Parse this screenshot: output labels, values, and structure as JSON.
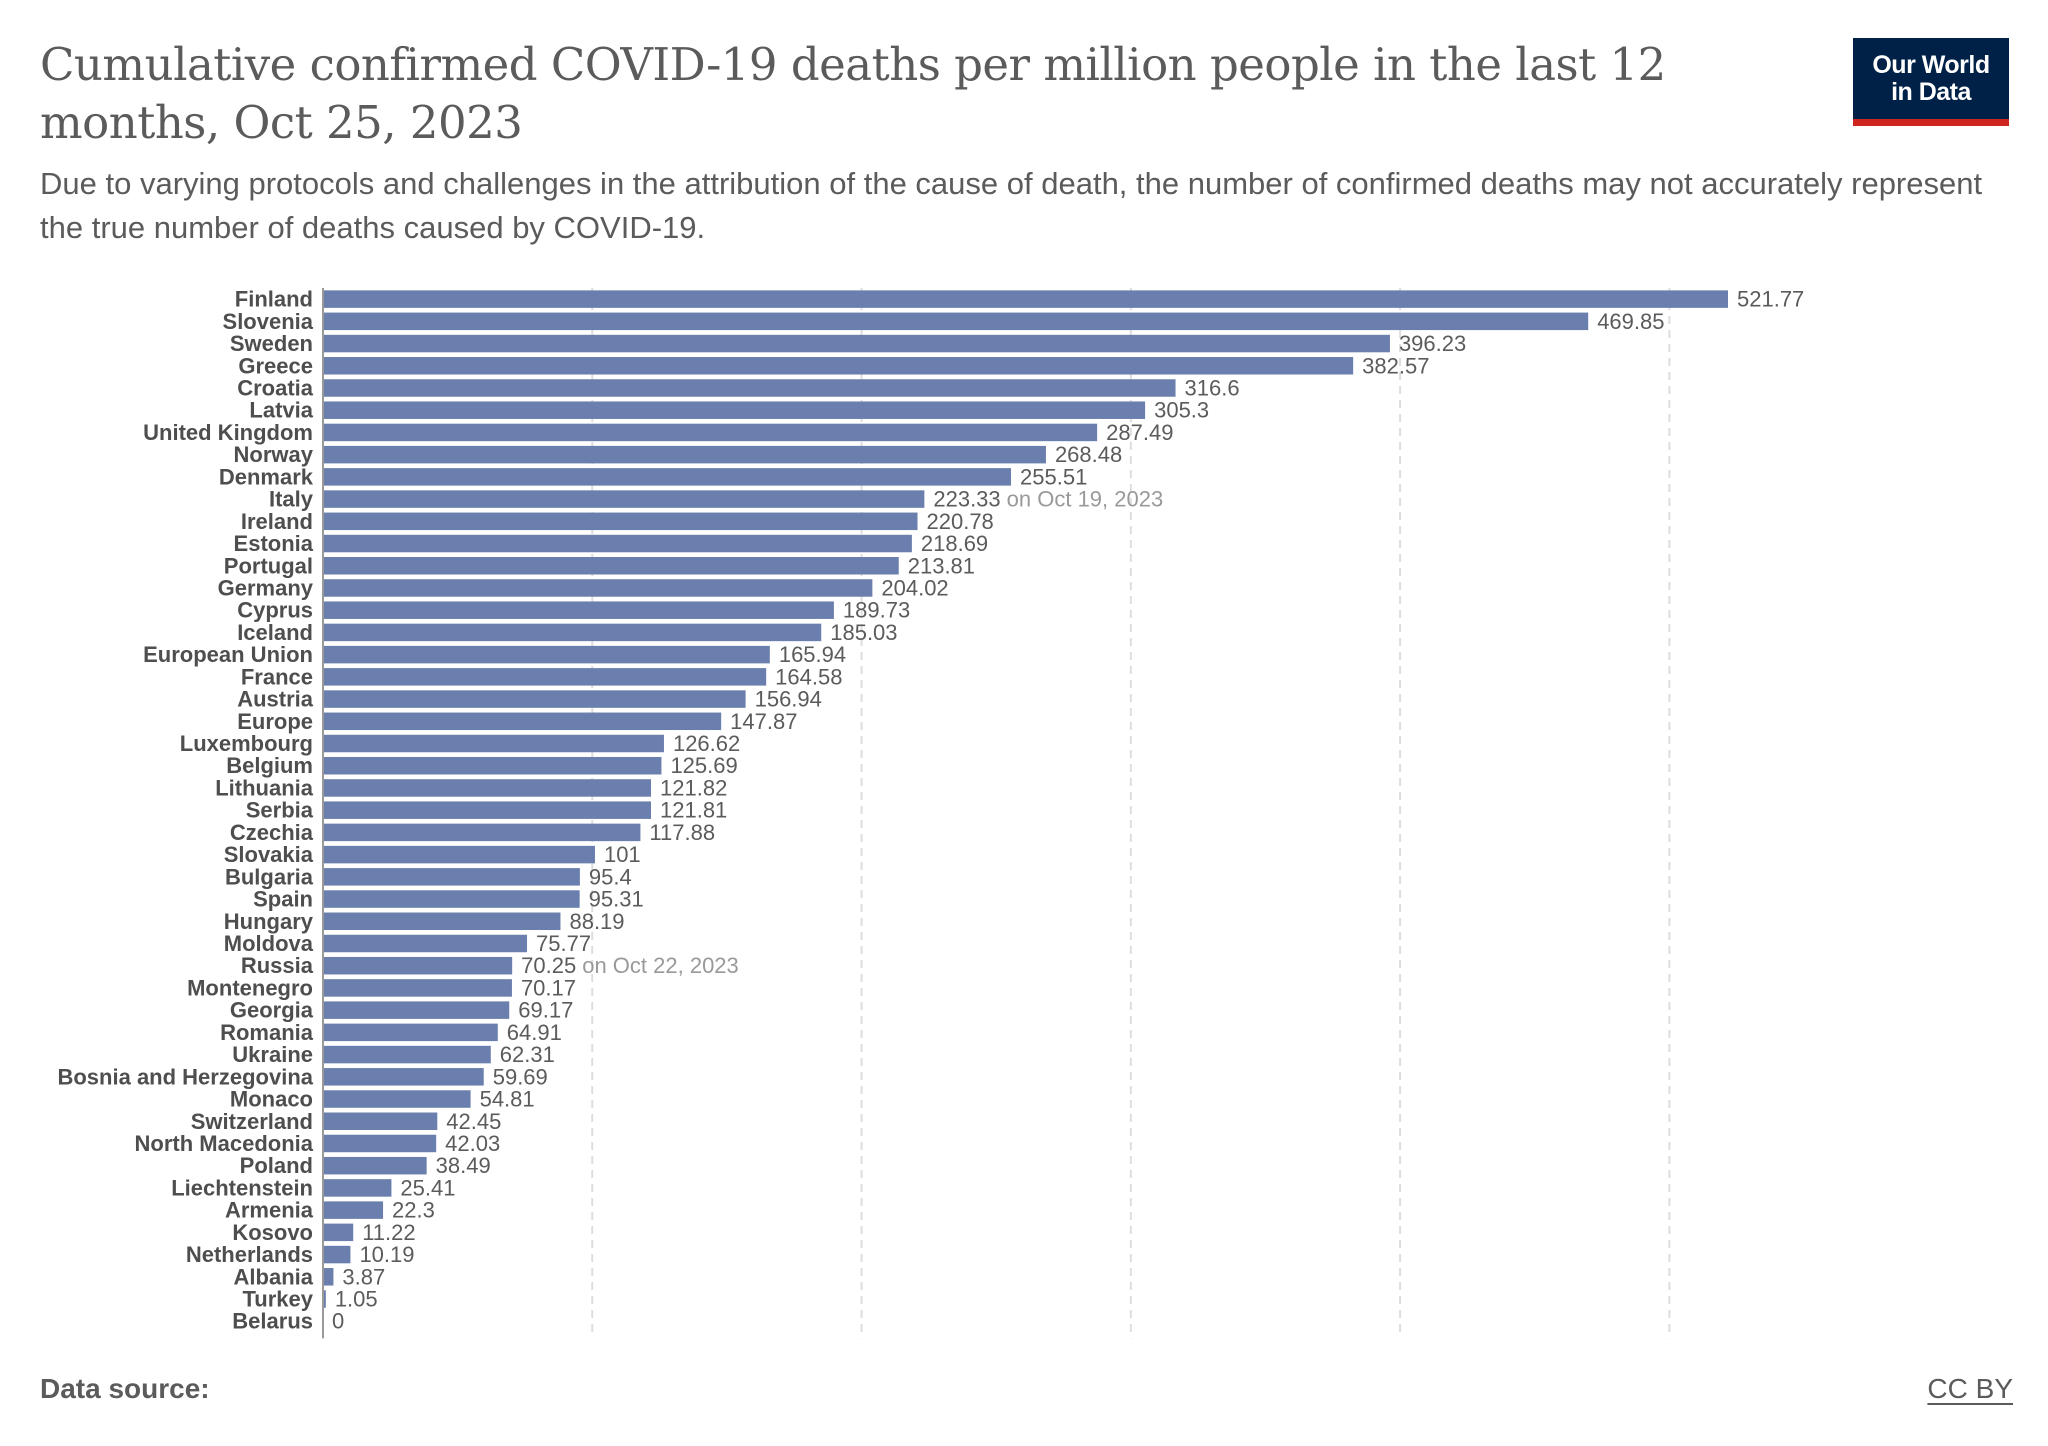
{
  "header": {
    "title": "Cumulative confirmed COVID-19 deaths per million people in the last 12 months, Oct 25, 2023",
    "subtitle": "Due to varying protocols and challenges in the attribution of the cause of death, the number of confirmed deaths may not accurately represent the true number of deaths caused by COVID-19.",
    "logo_line1": "Our World",
    "logo_line2": "in Data"
  },
  "footer": {
    "source_label": "Data source:",
    "license": "CC BY"
  },
  "colors": {
    "bar": "#6a7fad",
    "logo_bg": "#002147",
    "logo_accent": "#ce261e",
    "grid": "#dddddd"
  },
  "chart_data": {
    "type": "bar",
    "orientation": "horizontal",
    "title": "Cumulative confirmed COVID-19 deaths per million people in the last 12 months, Oct 25, 2023",
    "xlabel": "",
    "ylabel": "",
    "xlim": [
      0,
      521.77
    ],
    "gridlines": [
      100,
      200,
      300,
      400,
      500
    ],
    "grid": true,
    "legend": "none",
    "categories": [
      "Finland",
      "Slovenia",
      "Sweden",
      "Greece",
      "Croatia",
      "Latvia",
      "United Kingdom",
      "Norway",
      "Denmark",
      "Italy",
      "Ireland",
      "Estonia",
      "Portugal",
      "Germany",
      "Cyprus",
      "Iceland",
      "European Union",
      "France",
      "Austria",
      "Europe",
      "Luxembourg",
      "Belgium",
      "Lithuania",
      "Serbia",
      "Czechia",
      "Slovakia",
      "Bulgaria",
      "Spain",
      "Hungary",
      "Moldova",
      "Russia",
      "Montenegro",
      "Georgia",
      "Romania",
      "Ukraine",
      "Bosnia and Herzegovina",
      "Monaco",
      "Switzerland",
      "North Macedonia",
      "Poland",
      "Liechtenstein",
      "Armenia",
      "Kosovo",
      "Netherlands",
      "Albania",
      "Turkey",
      "Belarus"
    ],
    "values": [
      521.77,
      469.85,
      396.23,
      382.57,
      316.6,
      305.3,
      287.49,
      268.48,
      255.51,
      223.33,
      220.78,
      218.69,
      213.81,
      204.02,
      189.73,
      185.03,
      165.94,
      164.58,
      156.94,
      147.87,
      126.62,
      125.69,
      121.82,
      121.81,
      117.88,
      101,
      95.4,
      95.31,
      88.19,
      75.77,
      70.25,
      70.17,
      69.17,
      64.91,
      62.31,
      59.69,
      54.81,
      42.45,
      42.03,
      38.49,
      25.41,
      22.3,
      11.22,
      10.19,
      3.87,
      1.05,
      0
    ],
    "value_labels": [
      "521.77",
      "469.85",
      "396.23",
      "382.57",
      "316.6",
      "305.3",
      "287.49",
      "268.48",
      "255.51",
      "223.33",
      "220.78",
      "218.69",
      "213.81",
      "204.02",
      "189.73",
      "185.03",
      "165.94",
      "164.58",
      "156.94",
      "147.87",
      "126.62",
      "125.69",
      "121.82",
      "121.81",
      "117.88",
      "101",
      "95.4",
      "95.31",
      "88.19",
      "75.77",
      "70.25",
      "70.17",
      "69.17",
      "64.91",
      "62.31",
      "59.69",
      "54.81",
      "42.45",
      "42.03",
      "38.49",
      "25.41",
      "22.3",
      "11.22",
      "10.19",
      "3.87",
      "1.05",
      "0"
    ],
    "annotations": {
      "Italy": "on Oct 19, 2023",
      "Russia": "on Oct 22, 2023"
    }
  }
}
